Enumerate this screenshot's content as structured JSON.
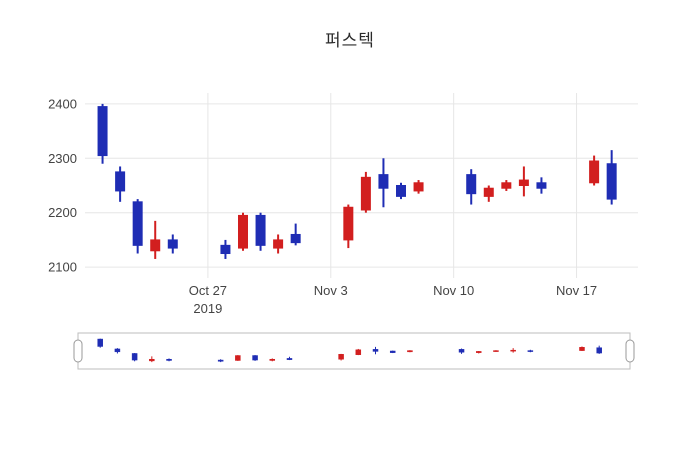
{
  "page": {
    "background_color": "#ffffff"
  },
  "chart_data": {
    "type": "candlestick",
    "title": "퍼스텍",
    "increasing_color": "#d21f1f",
    "decreasing_color": "#1f2db4",
    "grid_color": "#e6e6e6",
    "axis_label_color": "#444444",
    "rangeslider_border_color": "#bdbdbd",
    "rangeslider_handle_color": "#9a9a9a",
    "has_rangeslider": true,
    "legend": "none",
    "grid": "on",
    "ylim": [
      2080,
      2420
    ],
    "y_ticks": [
      2100,
      2200,
      2300,
      2400
    ],
    "x_tick_labels": [
      {
        "date": "2019-10-27",
        "label": "Oct 27",
        "sublabel": "2019"
      },
      {
        "date": "2019-11-03",
        "label": "Nov 3",
        "sublabel": ""
      },
      {
        "date": "2019-11-10",
        "label": "Nov 10",
        "sublabel": ""
      },
      {
        "date": "2019-11-17",
        "label": "Nov 17",
        "sublabel": ""
      }
    ],
    "dates": [
      "2019-10-21",
      "2019-10-22",
      "2019-10-23",
      "2019-10-24",
      "2019-10-25",
      "2019-10-28",
      "2019-10-29",
      "2019-10-30",
      "2019-10-31",
      "2019-11-01",
      "2019-11-04",
      "2019-11-05",
      "2019-11-06",
      "2019-11-07",
      "2019-11-08",
      "2019-11-11",
      "2019-11-12",
      "2019-11-13",
      "2019-11-14",
      "2019-11-15",
      "2019-11-18",
      "2019-11-19"
    ],
    "open": [
      2395,
      2275,
      2220,
      2130,
      2150,
      2140,
      2135,
      2195,
      2135,
      2160,
      2150,
      2205,
      2270,
      2250,
      2240,
      2270,
      2230,
      2245,
      2250,
      2255,
      2255,
      2290
    ],
    "high": [
      2400,
      2285,
      2225,
      2185,
      2160,
      2150,
      2200,
      2200,
      2160,
      2180,
      2215,
      2275,
      2300,
      2255,
      2260,
      2280,
      2250,
      2260,
      2285,
      2265,
      2305,
      2315
    ],
    "low": [
      2290,
      2220,
      2125,
      2115,
      2125,
      2115,
      2130,
      2130,
      2125,
      2140,
      2135,
      2200,
      2210,
      2225,
      2235,
      2215,
      2220,
      2240,
      2230,
      2235,
      2250,
      2215
    ],
    "close": [
      2305,
      2240,
      2140,
      2150,
      2135,
      2125,
      2195,
      2140,
      2150,
      2145,
      2210,
      2265,
      2245,
      2230,
      2255,
      2235,
      2245,
      2255,
      2260,
      2245,
      2295,
      2225
    ]
  }
}
